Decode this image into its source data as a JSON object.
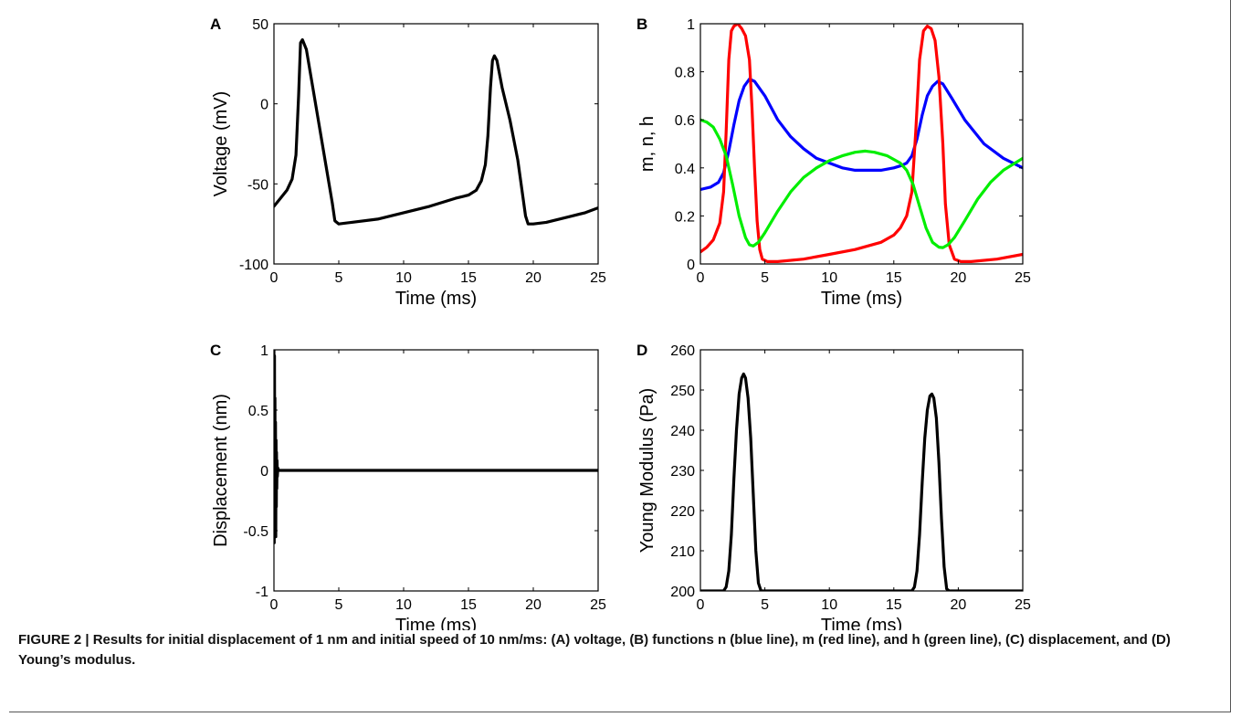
{
  "chart_data": [
    {
      "panel_label": "A",
      "type": "line",
      "xlabel": "Time (ms)",
      "ylabel": "Voltage (mV)",
      "xlim": [
        0,
        25
      ],
      "ylim": [
        -100,
        50
      ],
      "xticks": [
        0,
        5,
        10,
        15,
        20,
        25
      ],
      "yticks": [
        -100,
        -50,
        0,
        50
      ],
      "series": [
        {
          "color": "#000000",
          "x": [
            0,
            0.5,
            1.0,
            1.4,
            1.7,
            1.9,
            2.05,
            2.2,
            2.5,
            3.0,
            3.5,
            4.0,
            4.5,
            4.7,
            5,
            6,
            8,
            10,
            12,
            14,
            15,
            15.6,
            16.0,
            16.3,
            16.5,
            16.7,
            16.85,
            17.0,
            17.2,
            17.6,
            18.2,
            18.8,
            19.2,
            19.4,
            19.6,
            20,
            21,
            22,
            23,
            24,
            25
          ],
          "values": [
            -64,
            -59,
            -54,
            -47,
            -32,
            5,
            38,
            40,
            34,
            10,
            -14,
            -38,
            -62,
            -73,
            -75,
            -74,
            -72,
            -68,
            -64,
            -59,
            -57,
            -54,
            -48,
            -38,
            -20,
            10,
            27,
            30,
            27,
            10,
            -10,
            -35,
            -58,
            -70,
            -75,
            -75,
            -74,
            -72,
            -70,
            -68,
            -65
          ]
        }
      ]
    },
    {
      "panel_label": "B",
      "type": "line",
      "xlabel": "Time (ms)",
      "ylabel": "m, n, h",
      "xlim": [
        0,
        25
      ],
      "ylim": [
        0,
        1
      ],
      "xticks": [
        0,
        5,
        10,
        15,
        20,
        25
      ],
      "yticks": [
        0,
        0.2,
        0.4,
        0.6,
        0.8,
        1
      ],
      "series": [
        {
          "color": "#0000ff",
          "x": [
            0,
            0.8,
            1.4,
            1.8,
            2.2,
            2.6,
            3.0,
            3.4,
            3.8,
            4.2,
            5,
            6,
            7,
            8,
            9,
            10,
            11,
            12,
            13,
            14,
            15,
            15.6,
            16,
            16.4,
            16.8,
            17.2,
            17.6,
            18.0,
            18.4,
            18.8,
            19.5,
            20.5,
            22,
            23.5,
            25
          ],
          "values": [
            0.31,
            0.32,
            0.34,
            0.38,
            0.47,
            0.58,
            0.68,
            0.74,
            0.77,
            0.76,
            0.7,
            0.6,
            0.53,
            0.48,
            0.44,
            0.42,
            0.4,
            0.39,
            0.39,
            0.39,
            0.4,
            0.41,
            0.42,
            0.45,
            0.52,
            0.62,
            0.7,
            0.74,
            0.76,
            0.75,
            0.69,
            0.6,
            0.5,
            0.44,
            0.4
          ]
        },
        {
          "color": "#ff0000",
          "x": [
            0,
            0.5,
            1.0,
            1.5,
            1.8,
            2.0,
            2.2,
            2.4,
            2.6,
            2.9,
            3.2,
            3.5,
            3.8,
            4.0,
            4.2,
            4.4,
            4.6,
            4.8,
            5.2,
            6,
            8,
            10,
            12,
            14,
            15,
            15.5,
            16.0,
            16.4,
            16.7,
            17.0,
            17.3,
            17.6,
            17.9,
            18.2,
            18.5,
            18.8,
            19.0,
            19.3,
            19.7,
            20.2,
            21,
            23,
            25
          ],
          "values": [
            0.05,
            0.07,
            0.1,
            0.17,
            0.3,
            0.55,
            0.85,
            0.97,
            0.99,
            1.0,
            0.98,
            0.95,
            0.85,
            0.65,
            0.4,
            0.18,
            0.06,
            0.02,
            0.01,
            0.01,
            0.02,
            0.04,
            0.06,
            0.09,
            0.12,
            0.15,
            0.2,
            0.3,
            0.55,
            0.85,
            0.97,
            0.99,
            0.98,
            0.93,
            0.78,
            0.5,
            0.25,
            0.08,
            0.02,
            0.01,
            0.01,
            0.02,
            0.04
          ]
        },
        {
          "color": "#00ee00",
          "x": [
            0,
            0.5,
            1.0,
            1.5,
            2.0,
            2.5,
            3.0,
            3.5,
            3.8,
            4.1,
            4.5,
            5,
            6,
            7,
            8,
            9,
            10,
            11,
            12,
            12.8,
            13.5,
            14.5,
            15.5,
            16.0,
            16.5,
            17.0,
            17.5,
            18.0,
            18.5,
            18.8,
            19.2,
            19.7,
            20.5,
            21.5,
            22.5,
            23.5,
            25
          ],
          "values": [
            0.6,
            0.59,
            0.57,
            0.52,
            0.45,
            0.33,
            0.2,
            0.11,
            0.08,
            0.075,
            0.09,
            0.13,
            0.22,
            0.3,
            0.36,
            0.4,
            0.43,
            0.45,
            0.465,
            0.47,
            0.465,
            0.45,
            0.42,
            0.39,
            0.33,
            0.24,
            0.15,
            0.09,
            0.07,
            0.068,
            0.08,
            0.11,
            0.18,
            0.27,
            0.34,
            0.39,
            0.44
          ]
        }
      ]
    },
    {
      "panel_label": "C",
      "type": "line",
      "xlabel": "Time (ms)",
      "ylabel": "Displacement (nm)",
      "xlim": [
        0,
        25
      ],
      "ylim": [
        -1,
        1
      ],
      "xticks": [
        0,
        5,
        10,
        15,
        20,
        25
      ],
      "yticks": [
        -1,
        -0.5,
        0,
        0.5,
        1
      ],
      "series": [
        {
          "color": "#000000",
          "x": [
            0,
            0.02,
            0.04,
            0.06,
            0.08,
            0.1,
            0.12,
            0.14,
            0.16,
            0.18,
            0.2,
            0.22,
            0.24,
            0.26,
            0.3,
            0.35,
            0.5,
            1,
            25
          ],
          "values": [
            1.0,
            -0.6,
            0.95,
            -0.5,
            0.6,
            -0.5,
            0.4,
            -0.55,
            0.25,
            -0.3,
            0.15,
            -0.15,
            0.08,
            -0.05,
            0.02,
            0,
            0,
            0,
            0
          ]
        }
      ]
    },
    {
      "panel_label": "D",
      "type": "line",
      "xlabel": "Time (ms)",
      "ylabel": "Young Modulus (Pa)",
      "xlim": [
        0,
        25
      ],
      "ylim": [
        200,
        260
      ],
      "xticks": [
        0,
        5,
        10,
        15,
        20,
        25
      ],
      "yticks": [
        200,
        210,
        220,
        230,
        240,
        250,
        260
      ],
      "series": [
        {
          "color": "#000000",
          "x": [
            0,
            1.8,
            2.0,
            2.2,
            2.4,
            2.6,
            2.8,
            3.0,
            3.2,
            3.35,
            3.5,
            3.7,
            3.9,
            4.1,
            4.3,
            4.5,
            4.7,
            5,
            10,
            16.4,
            16.6,
            16.8,
            17.0,
            17.2,
            17.4,
            17.6,
            17.8,
            17.95,
            18.1,
            18.3,
            18.5,
            18.7,
            18.9,
            19.1,
            19.3,
            25
          ],
          "values": [
            200,
            200,
            201,
            205,
            214,
            228,
            240,
            249,
            253,
            254,
            253,
            248,
            238,
            224,
            210,
            202,
            200,
            200,
            200,
            200,
            201,
            205,
            214,
            227,
            238,
            245,
            248.5,
            249,
            248,
            243,
            232,
            218,
            206,
            200.5,
            200,
            200
          ]
        }
      ]
    }
  ],
  "caption": {
    "text": "FIGURE 2 | Results for initial displacement of 1 nm and initial speed of 10 nm/ms: (A) voltage, (B) functions n (blue line), m (red line), and h (green line), (C) displacement, and (D) Young’s modulus."
  }
}
